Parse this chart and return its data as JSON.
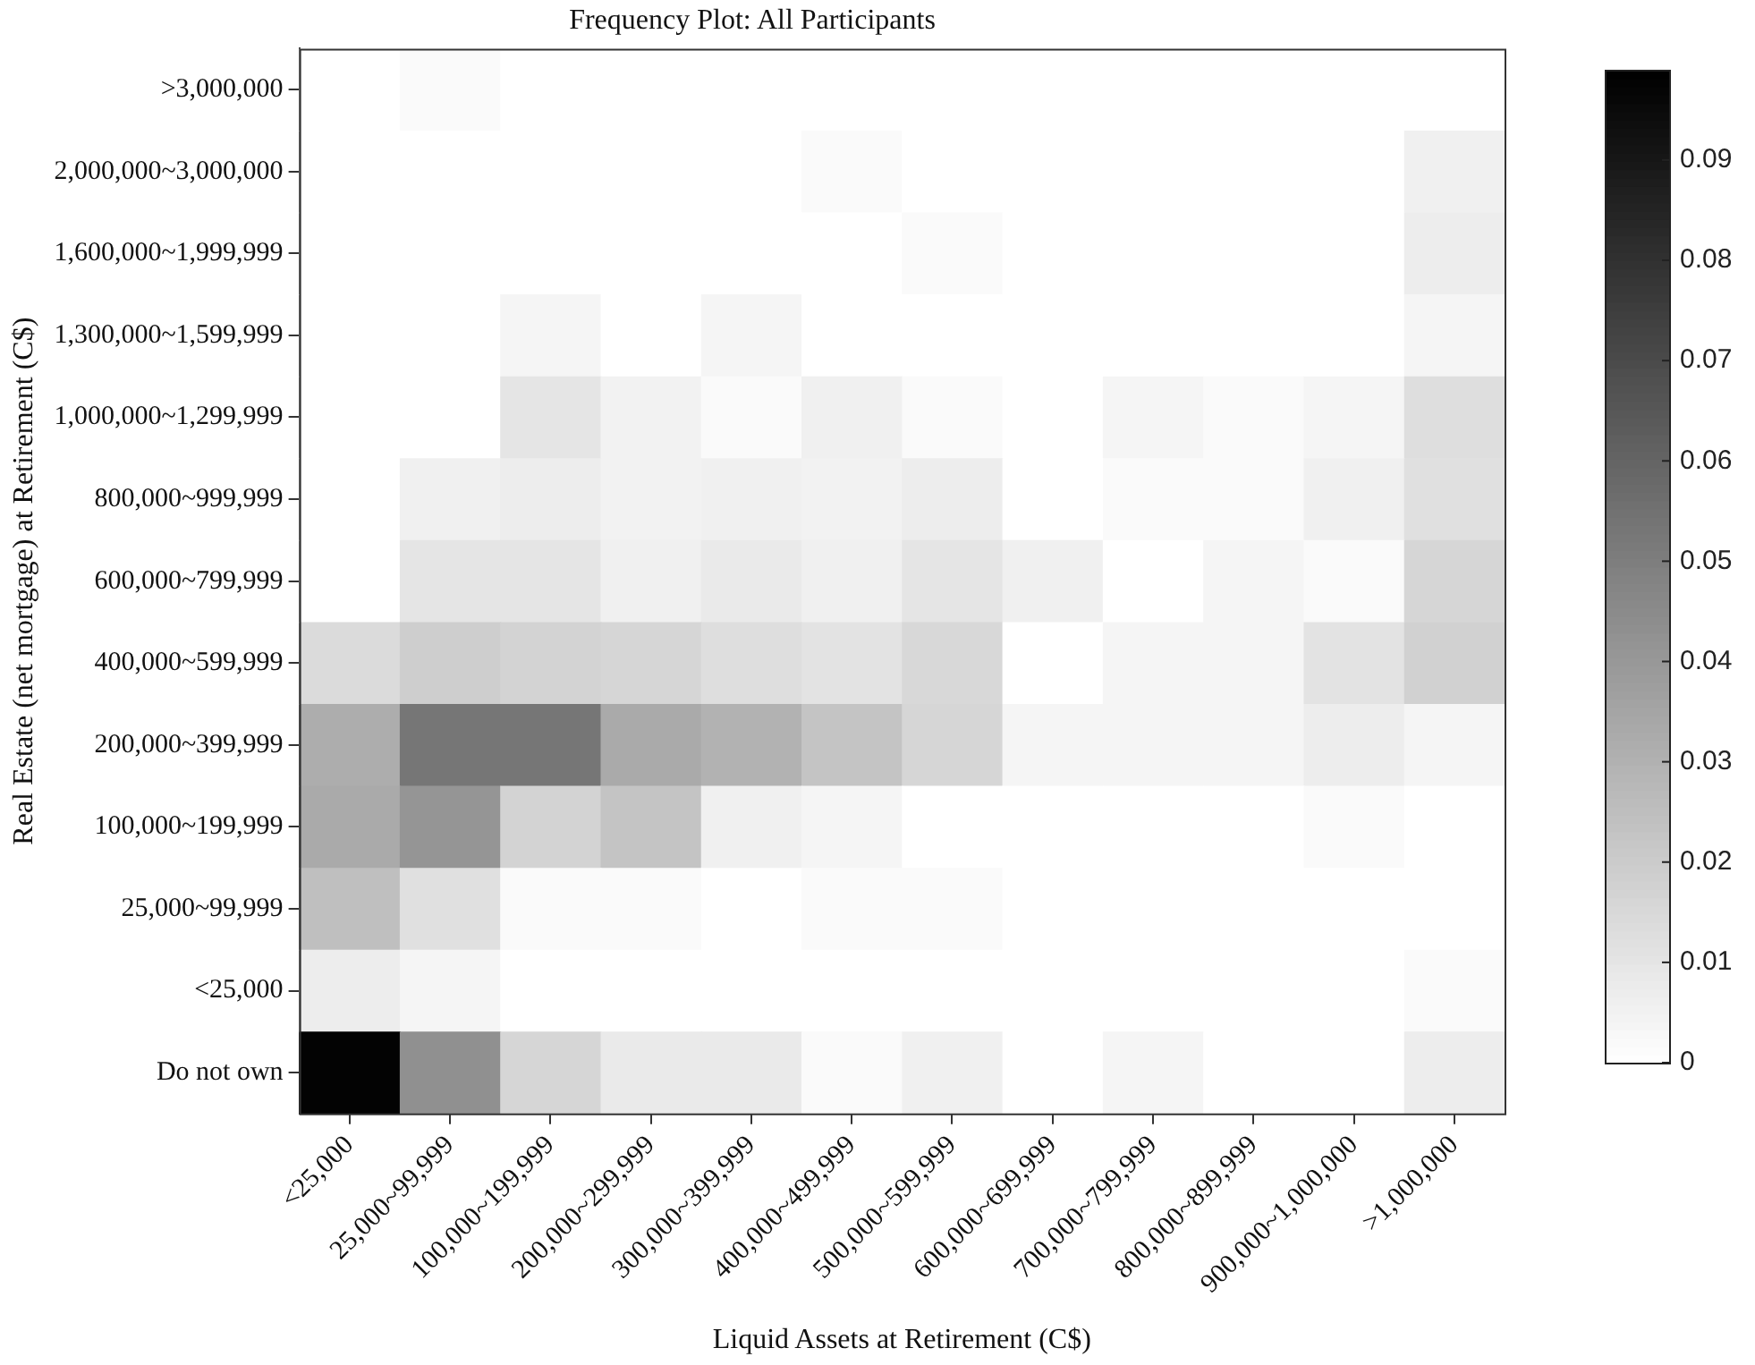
{
  "chart_data": {
    "type": "heatmap",
    "title": "Frequency Plot: All Participants",
    "xlabel": "Liquid Assets at Retirement (C$)",
    "ylabel": "Real Estate (net mortgage) at Retirement (C$)",
    "categories": [
      "<25,000",
      "25,000~99,999",
      "100,000~199,999",
      "200,000~299,999",
      "300,000~399,999",
      "400,000~499,999",
      "500,000~599,999",
      "600,000~699,999",
      "700,000~799,999",
      "800,000~899,999",
      "900,000~1,000,000",
      ">1,000,000"
    ],
    "y_categories": [
      ">3,000,000",
      "2,000,000~3,000,000",
      "1,600,000~1,999,999",
      "1,300,000~1,599,999",
      "1,000,000~1,299,999",
      "800,000~999,999",
      "600,000~799,999",
      "400,000~599,999",
      "200,000~399,999",
      "100,000~199,999",
      "25,000~99,999",
      "<25,000",
      "Do not own"
    ],
    "cells": [
      [
        0,
        0.002,
        0,
        0,
        0,
        0,
        0,
        0,
        0,
        0,
        0,
        0
      ],
      [
        0,
        0,
        0,
        0,
        0,
        0.002,
        0,
        0,
        0,
        0,
        0,
        0.006
      ],
      [
        0,
        0,
        0,
        0,
        0,
        0,
        0.002,
        0,
        0,
        0,
        0,
        0.007
      ],
      [
        0,
        0,
        0.004,
        0,
        0.004,
        0,
        0,
        0,
        0,
        0,
        0,
        0.004
      ],
      [
        0,
        0,
        0.01,
        0.005,
        0.002,
        0.006,
        0.002,
        0,
        0.004,
        0.002,
        0.004,
        0.013
      ],
      [
        0,
        0.006,
        0.007,
        0.005,
        0.006,
        0.005,
        0.007,
        0,
        0.002,
        0.002,
        0.006,
        0.012
      ],
      [
        0,
        0.01,
        0.01,
        0.006,
        0.008,
        0.006,
        0.01,
        0.006,
        0,
        0.004,
        0.002,
        0.016
      ],
      [
        0.014,
        0.019,
        0.017,
        0.016,
        0.013,
        0.011,
        0.015,
        0,
        0.004,
        0.004,
        0.011,
        0.018
      ],
      [
        0.032,
        0.053,
        0.053,
        0.033,
        0.03,
        0.023,
        0.016,
        0.004,
        0.004,
        0.004,
        0.007,
        0.004
      ],
      [
        0.033,
        0.041,
        0.017,
        0.023,
        0.006,
        0.004,
        0,
        0,
        0,
        0,
        0.002,
        0
      ],
      [
        0.025,
        0.012,
        0.002,
        0.002,
        0,
        0.002,
        0.002,
        0,
        0,
        0,
        0,
        0
      ],
      [
        0.007,
        0.004,
        0,
        0,
        0,
        0,
        0,
        0,
        0,
        0,
        0,
        0.002
      ],
      [
        0.098,
        0.043,
        0.016,
        0.008,
        0.008,
        0.002,
        0.006,
        0,
        0.004,
        0,
        0,
        0.007
      ]
    ],
    "clim": [
      0,
      0.099
    ],
    "cticks": [
      0,
      0.01,
      0.02,
      0.03,
      0.04,
      0.05,
      0.06,
      0.07,
      0.08,
      0.09
    ]
  }
}
